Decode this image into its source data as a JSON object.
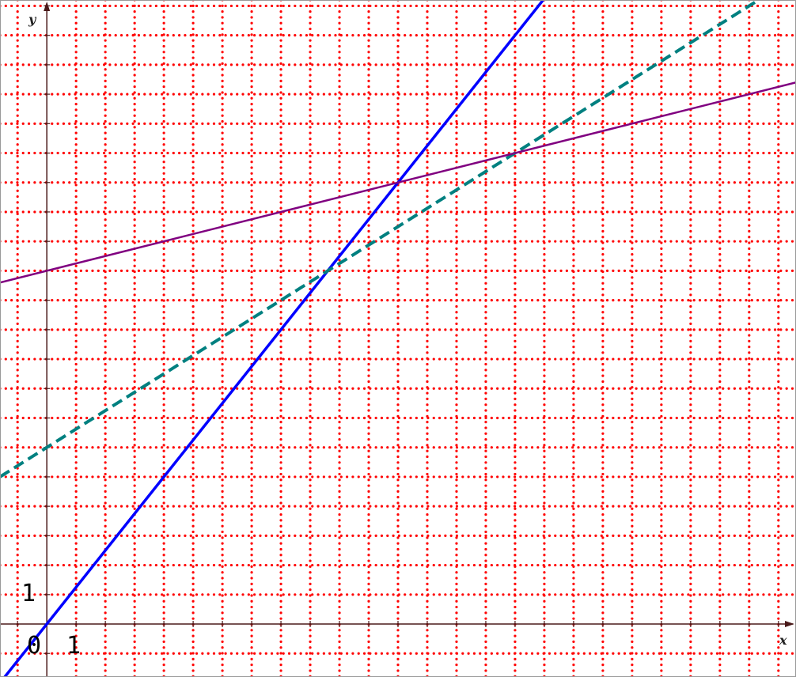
{
  "chart_data": {
    "type": "line",
    "xlabel": "x",
    "ylabel": "y",
    "xlim": [
      -1.6,
      25.6
    ],
    "ylim": [
      -1.8,
      21.2
    ],
    "grid": true,
    "grid_color": "#ff0000",
    "tick_labels": {
      "origin": "0",
      "x_one": "1",
      "y_one": "1"
    },
    "series": [
      {
        "id": "blue-line",
        "slope": 1.25,
        "intercept": 0,
        "color": "#0000ff",
        "style": "solid",
        "width": 3.5
      },
      {
        "id": "teal-dashed-line",
        "slope": 0.625,
        "intercept": 6,
        "color": "#008080",
        "style": "dashed",
        "width": 4
      },
      {
        "id": "purple-line",
        "slope": 0.25,
        "intercept": 12,
        "color": "#800080",
        "style": "solid",
        "width": 2.5
      }
    ]
  }
}
